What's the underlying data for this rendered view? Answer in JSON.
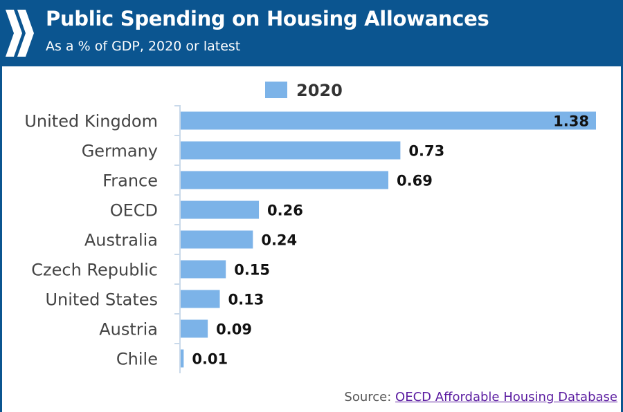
{
  "header": {
    "title": "Public Spending on Housing Allowances",
    "subtitle": "As a % of GDP, 2020 or latest",
    "logo_icon": "oecd-chevrons-logo-icon",
    "background_color": "#0b5590"
  },
  "chart_data": {
    "type": "bar",
    "orientation": "horizontal",
    "title": "Public Spending on Housing Allowances",
    "subtitle": "As a % of GDP, 2020 or latest",
    "categories": [
      "United Kingdom",
      "Germany",
      "France",
      "OECD",
      "Australia",
      "Czech Republic",
      "United States",
      "Austria",
      "Chile"
    ],
    "series": [
      {
        "name": "2020",
        "values": [
          1.38,
          0.73,
          0.69,
          0.26,
          0.24,
          0.15,
          0.13,
          0.09,
          0.01
        ],
        "labels": [
          "1.38",
          "0.73",
          "0.69",
          "0.26",
          "0.24",
          "0.15",
          "0.13",
          "0.09",
          "0.01"
        ],
        "color": "#7cb3e8"
      }
    ],
    "xlim": [
      0,
      1.38
    ],
    "legend": {
      "position": "top",
      "entries": [
        "2020"
      ]
    },
    "xlabel": "",
    "ylabel": "",
    "grid": false
  },
  "source": {
    "prefix": "Source: ",
    "link_text": "OECD Affordable Housing Database"
  }
}
